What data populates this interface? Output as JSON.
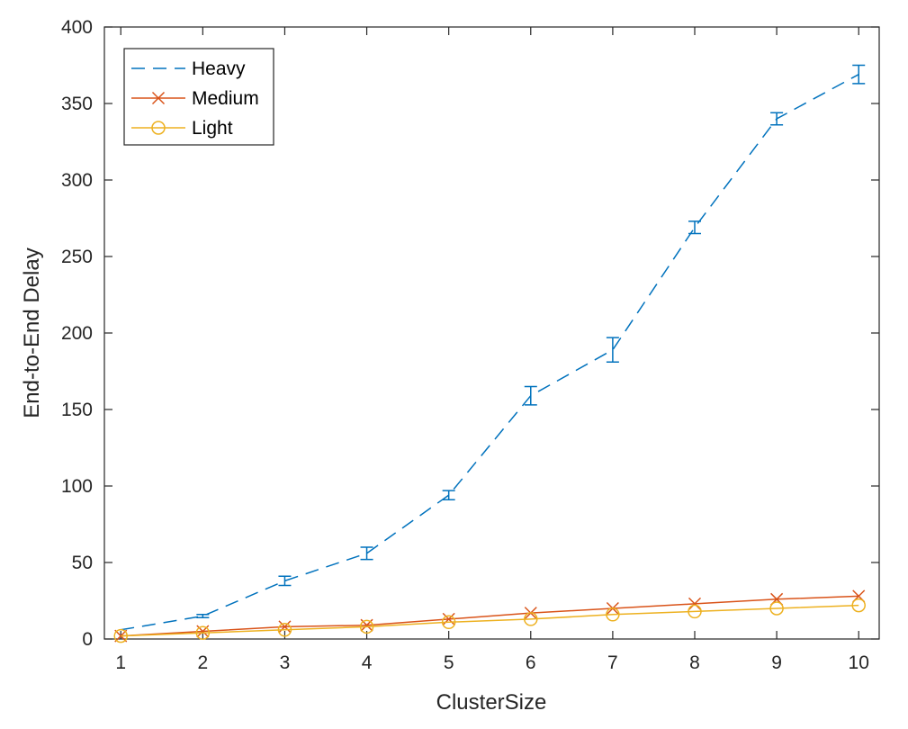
{
  "chart_data": {
    "type": "line",
    "title": "",
    "xlabel": "ClusterSize",
    "ylabel": "End-to-End Delay",
    "xlim": [
      0.8,
      10.25
    ],
    "ylim": [
      0,
      400
    ],
    "xticks": [
      1,
      2,
      3,
      4,
      5,
      6,
      7,
      8,
      9,
      10
    ],
    "yticks": [
      0,
      50,
      100,
      150,
      200,
      250,
      300,
      350,
      400
    ],
    "grid": false,
    "legend_position": "top-left",
    "x": [
      1,
      2,
      3,
      4,
      5,
      6,
      7,
      8,
      9,
      10
    ],
    "series": [
      {
        "name": "Heavy",
        "color": "#0072BD",
        "line_style": "dashed",
        "marker": "none",
        "values": [
          6,
          15,
          38,
          56,
          94,
          159,
          189,
          269,
          340,
          369
        ],
        "error": [
          0,
          1,
          3,
          4,
          3,
          6,
          8,
          4,
          4,
          6
        ]
      },
      {
        "name": "Medium",
        "color": "#D95319",
        "line_style": "solid",
        "marker": "x",
        "values": [
          2,
          5,
          8,
          9,
          13,
          17,
          20,
          23,
          26,
          28
        ]
      },
      {
        "name": "Light",
        "color": "#EDB120",
        "line_style": "solid",
        "marker": "circle",
        "values": [
          2,
          4,
          6,
          8,
          11,
          13,
          16,
          18,
          20,
          22
        ]
      }
    ]
  }
}
